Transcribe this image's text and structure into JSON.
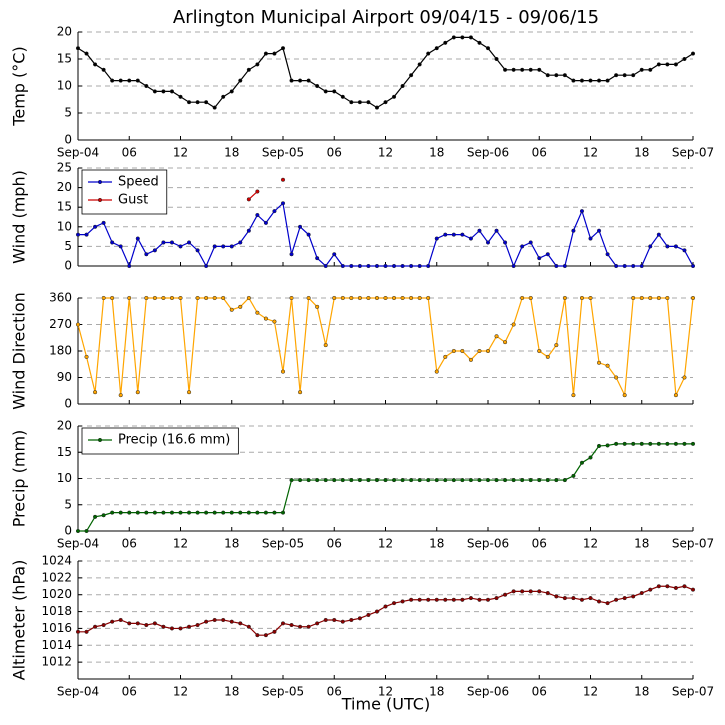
{
  "title": "Arlington Municipal Airport 09/04/15 - 09/06/15",
  "xlabel": "Time (UTC)",
  "chart_data": [
    {
      "type": "line",
      "ylabel": "Temp (°C)",
      "x": [
        0,
        1,
        2,
        3,
        4,
        5,
        6,
        7,
        8,
        9,
        10,
        11,
        12,
        13,
        14,
        15,
        16,
        17,
        18,
        19,
        20,
        21,
        22,
        23,
        24,
        25,
        26,
        27,
        28,
        29,
        30,
        31,
        32,
        33,
        34,
        35,
        36,
        37,
        38,
        39,
        40,
        41,
        42,
        43,
        44,
        45,
        46,
        47,
        48,
        49,
        50,
        51,
        52,
        53,
        54,
        55,
        56,
        57,
        58,
        59,
        60,
        61,
        62,
        63,
        64,
        65,
        66,
        67,
        68,
        69,
        70,
        71,
        72
      ],
      "xlim": [
        0,
        72
      ],
      "xticks": [
        {
          "value": 0,
          "label": "Sep-04"
        },
        {
          "value": 6,
          "label": "06"
        },
        {
          "value": 12,
          "label": "12"
        },
        {
          "value": 18,
          "label": "18"
        },
        {
          "value": 24,
          "label": "Sep-05"
        },
        {
          "value": 30,
          "label": "06"
        },
        {
          "value": 36,
          "label": "12"
        },
        {
          "value": 42,
          "label": "18"
        },
        {
          "value": 48,
          "label": "Sep-06"
        },
        {
          "value": 54,
          "label": "06"
        },
        {
          "value": 60,
          "label": "12"
        },
        {
          "value": 66,
          "label": "18"
        },
        {
          "value": 72,
          "label": "Sep-07"
        }
      ],
      "ylim": [
        0,
        20
      ],
      "yticks": [
        0,
        5,
        10,
        15,
        20
      ],
      "grid": true,
      "series": [
        {
          "color": "#000000",
          "values": [
            17,
            16,
            14,
            13,
            11,
            11,
            11,
            11,
            10,
            9,
            9,
            9,
            8,
            7,
            7,
            7,
            6,
            8,
            9,
            11,
            13,
            14,
            16,
            16,
            17,
            11,
            11,
            11,
            10,
            9,
            9,
            8,
            7,
            7,
            7,
            6,
            7,
            8,
            10,
            12,
            14,
            16,
            17,
            18,
            19,
            19,
            19,
            18,
            17,
            15,
            13,
            13,
            13,
            13,
            13,
            12,
            12,
            12,
            11,
            11,
            11,
            11,
            11,
            12,
            12,
            12,
            13,
            13,
            14,
            14,
            14,
            15,
            16
          ]
        }
      ]
    },
    {
      "type": "line",
      "ylabel": "Wind (mph)",
      "x": [
        0,
        1,
        2,
        3,
        4,
        5,
        6,
        7,
        8,
        9,
        10,
        11,
        12,
        13,
        14,
        15,
        16,
        17,
        18,
        19,
        20,
        21,
        22,
        23,
        24,
        25,
        26,
        27,
        28,
        29,
        30,
        31,
        32,
        33,
        34,
        35,
        36,
        37,
        38,
        39,
        40,
        41,
        42,
        43,
        44,
        45,
        46,
        47,
        48,
        49,
        50,
        51,
        52,
        53,
        54,
        55,
        56,
        57,
        58,
        59,
        60,
        61,
        62,
        63,
        64,
        65,
        66,
        67,
        68,
        69,
        70,
        71,
        72
      ],
      "xlim": [
        0,
        72
      ],
      "xticks": [
        0,
        6,
        12,
        18,
        24,
        30,
        36,
        42,
        48,
        54,
        60,
        66,
        72
      ],
      "ylim": [
        0,
        25
      ],
      "yticks": [
        0,
        5,
        10,
        15,
        20,
        25
      ],
      "grid": true,
      "legend": "upper left",
      "series": [
        {
          "name": "Speed",
          "color": "#0000cc",
          "values": [
            8,
            8,
            10,
            11,
            6,
            5,
            0,
            7,
            3,
            4,
            6,
            6,
            5,
            6,
            4,
            0,
            5,
            5,
            5,
            6,
            9,
            13,
            11,
            14,
            16,
            3,
            10,
            8,
            2,
            0,
            3,
            0,
            0,
            0,
            0,
            0,
            0,
            0,
            0,
            0,
            0,
            0,
            7,
            8,
            8,
            8,
            7,
            9,
            6,
            9,
            6,
            0,
            5,
            6,
            2,
            3,
            0,
            0,
            9,
            14,
            7,
            9,
            3,
            0,
            0,
            0,
            0,
            5,
            8,
            5,
            5,
            4,
            0
          ]
        },
        {
          "name": "Gust",
          "color": "#cc0000",
          "values": [
            null,
            null,
            null,
            null,
            null,
            null,
            null,
            null,
            null,
            null,
            null,
            null,
            null,
            null,
            null,
            null,
            null,
            null,
            null,
            null,
            17,
            19,
            null,
            null,
            22,
            null,
            null,
            null,
            null,
            null,
            null,
            null,
            null,
            null,
            null,
            null,
            null,
            null,
            null,
            null,
            null,
            null,
            null,
            null,
            null,
            null,
            null,
            null,
            null,
            null,
            null,
            null,
            null,
            null,
            null,
            null,
            null,
            null,
            null,
            null,
            null,
            null,
            null,
            null,
            null,
            null,
            null,
            null,
            null,
            null,
            null,
            null,
            null
          ]
        }
      ]
    },
    {
      "type": "line",
      "ylabel": "Wind Direction",
      "x": [
        0,
        1,
        2,
        3,
        4,
        5,
        6,
        7,
        8,
        9,
        10,
        11,
        12,
        13,
        14,
        15,
        16,
        17,
        18,
        19,
        20,
        21,
        22,
        23,
        24,
        25,
        26,
        27,
        28,
        29,
        30,
        31,
        32,
        33,
        34,
        35,
        36,
        37,
        38,
        39,
        40,
        41,
        42,
        43,
        44,
        45,
        46,
        47,
        48,
        49,
        50,
        51,
        52,
        53,
        54,
        55,
        56,
        57,
        58,
        59,
        60,
        61,
        62,
        63,
        64,
        65,
        66,
        67,
        68,
        69,
        70,
        71,
        72
      ],
      "xlim": [
        0,
        72
      ],
      "xticks": [
        0,
        6,
        12,
        18,
        24,
        30,
        36,
        42,
        48,
        54,
        60,
        66,
        72
      ],
      "ylim": [
        0,
        360
      ],
      "yticks": [
        0,
        90,
        180,
        270,
        360
      ],
      "grid": true,
      "series": [
        {
          "color": "#ffa500",
          "values": [
            270,
            160,
            40,
            360,
            360,
            30,
            360,
            40,
            360,
            360,
            360,
            360,
            360,
            40,
            360,
            360,
            360,
            360,
            320,
            330,
            360,
            310,
            290,
            280,
            110,
            360,
            40,
            360,
            330,
            200,
            360,
            360,
            360,
            360,
            360,
            360,
            360,
            360,
            360,
            360,
            360,
            360,
            110,
            160,
            180,
            180,
            150,
            180,
            180,
            230,
            210,
            270,
            360,
            360,
            180,
            160,
            200,
            360,
            30,
            360,
            360,
            140,
            130,
            90,
            30,
            360,
            360,
            360,
            360,
            360,
            30,
            90,
            360
          ]
        }
      ]
    },
    {
      "type": "line",
      "ylabel": "Precip (mm)",
      "x": [
        0,
        1,
        2,
        3,
        4,
        5,
        6,
        7,
        8,
        9,
        10,
        11,
        12,
        13,
        14,
        15,
        16,
        17,
        18,
        19,
        20,
        21,
        22,
        23,
        24,
        25,
        26,
        27,
        28,
        29,
        30,
        31,
        32,
        33,
        34,
        35,
        36,
        37,
        38,
        39,
        40,
        41,
        42,
        43,
        44,
        45,
        46,
        47,
        48,
        49,
        50,
        51,
        52,
        53,
        54,
        55,
        56,
        57,
        58,
        59,
        60,
        61,
        62,
        63,
        64,
        65,
        66,
        67,
        68,
        69,
        70,
        71,
        72
      ],
      "xlim": [
        0,
        72
      ],
      "xticks": [
        {
          "value": 0,
          "label": "Sep-04"
        },
        {
          "value": 6,
          "label": "06"
        },
        {
          "value": 12,
          "label": "12"
        },
        {
          "value": 18,
          "label": "18"
        },
        {
          "value": 24,
          "label": "Sep-05"
        },
        {
          "value": 30,
          "label": "06"
        },
        {
          "value": 36,
          "label": "12"
        },
        {
          "value": 42,
          "label": "18"
        },
        {
          "value": 48,
          "label": "Sep-06"
        },
        {
          "value": 54,
          "label": "06"
        },
        {
          "value": 60,
          "label": "12"
        },
        {
          "value": 66,
          "label": "18"
        },
        {
          "value": 72,
          "label": "Sep-07"
        }
      ],
      "ylim": [
        0,
        20
      ],
      "yticks": [
        0,
        5,
        10,
        15,
        20
      ],
      "grid": true,
      "legend": "upper left",
      "series": [
        {
          "name": "Precip (16.6 mm)",
          "color": "#006400",
          "values": [
            0,
            0,
            2.7,
            3,
            3.5,
            3.5,
            3.5,
            3.5,
            3.5,
            3.5,
            3.5,
            3.5,
            3.5,
            3.5,
            3.5,
            3.5,
            3.5,
            3.5,
            3.5,
            3.5,
            3.5,
            3.5,
            3.5,
            3.5,
            3.5,
            9.7,
            9.7,
            9.7,
            9.7,
            9.7,
            9.7,
            9.7,
            9.7,
            9.7,
            9.7,
            9.7,
            9.7,
            9.7,
            9.7,
            9.7,
            9.7,
            9.7,
            9.7,
            9.7,
            9.7,
            9.7,
            9.7,
            9.7,
            9.7,
            9.7,
            9.7,
            9.7,
            9.7,
            9.7,
            9.7,
            9.7,
            9.7,
            9.7,
            10.5,
            13,
            14,
            16.2,
            16.3,
            16.6,
            16.6,
            16.6,
            16.6,
            16.6,
            16.6,
            16.6,
            16.6,
            16.6,
            16.6
          ]
        }
      ]
    },
    {
      "type": "line",
      "ylabel": "Altimeter (hPa)",
      "x": [
        0,
        1,
        2,
        3,
        4,
        5,
        6,
        7,
        8,
        9,
        10,
        11,
        12,
        13,
        14,
        15,
        16,
        17,
        18,
        19,
        20,
        21,
        22,
        23,
        24,
        25,
        26,
        27,
        28,
        29,
        30,
        31,
        32,
        33,
        34,
        35,
        36,
        37,
        38,
        39,
        40,
        41,
        42,
        43,
        44,
        45,
        46,
        47,
        48,
        49,
        50,
        51,
        52,
        53,
        54,
        55,
        56,
        57,
        58,
        59,
        60,
        61,
        62,
        63,
        64,
        65,
        66,
        67,
        68,
        69,
        70,
        71,
        72
      ],
      "xlim": [
        0,
        72
      ],
      "xticks": [
        {
          "value": 0,
          "label": "Sep-04"
        },
        {
          "value": 6,
          "label": "06"
        },
        {
          "value": 12,
          "label": "12"
        },
        {
          "value": 18,
          "label": "18"
        },
        {
          "value": 24,
          "label": "Sep-05"
        },
        {
          "value": 30,
          "label": "06"
        },
        {
          "value": 36,
          "label": "12"
        },
        {
          "value": 42,
          "label": "18"
        },
        {
          "value": 48,
          "label": "Sep-06"
        },
        {
          "value": 54,
          "label": "06"
        },
        {
          "value": 60,
          "label": "12"
        },
        {
          "value": 66,
          "label": "18"
        },
        {
          "value": 72,
          "label": "Sep-07"
        }
      ],
      "ylim": [
        1010,
        1024
      ],
      "yticks": [
        1012,
        1014,
        1016,
        1018,
        1020,
        1022,
        1024
      ],
      "grid": true,
      "series": [
        {
          "color": "#8b0000",
          "values": [
            1015.6,
            1015.6,
            1016.2,
            1016.4,
            1016.8,
            1017,
            1016.6,
            1016.6,
            1016.4,
            1016.6,
            1016.2,
            1016,
            1016,
            1016.2,
            1016.4,
            1016.8,
            1017,
            1017,
            1016.8,
            1016.6,
            1016.2,
            1015.2,
            1015.2,
            1015.6,
            1016.6,
            1016.4,
            1016.2,
            1016.2,
            1016.6,
            1017,
            1017,
            1016.8,
            1017,
            1017.2,
            1017.6,
            1018,
            1018.6,
            1019,
            1019.2,
            1019.4,
            1019.4,
            1019.4,
            1019.4,
            1019.4,
            1019.4,
            1019.4,
            1019.6,
            1019.4,
            1019.4,
            1019.6,
            1020,
            1020.4,
            1020.4,
            1020.4,
            1020.4,
            1020.2,
            1019.8,
            1019.6,
            1019.6,
            1019.4,
            1019.6,
            1019.2,
            1019,
            1019.4,
            1019.6,
            1019.8,
            1020.2,
            1020.6,
            1021,
            1021,
            1020.8,
            1021,
            1020.6
          ]
        }
      ]
    }
  ]
}
